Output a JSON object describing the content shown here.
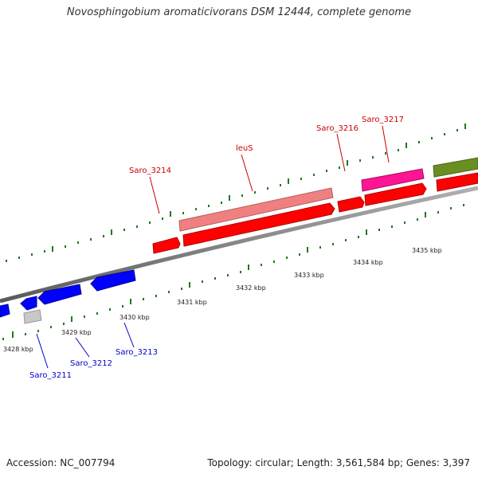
{
  "title": "Novosphingobium aromaticivorans DSM 12444, complete genome",
  "footer": {
    "accession": "Accession: NC_007794",
    "summary": "Topology: circular; Length: 3,561,584 bp; Genes: 3,397"
  },
  "colors": {
    "forward_gene": "#ff0000",
    "reverse_gene": "#0000ff",
    "leuS_gene": "#f08080",
    "saro3217_gene": "#ff1493",
    "olive_gene": "#6b8e23",
    "grey_gene": "#c8c8c8",
    "backbone": "#7a7a7a",
    "tick": "#1e7a1e",
    "forward_label": "#cc0000",
    "reverse_label": "#0000cc"
  },
  "scale_labels": [
    "3428 kbp",
    "3429 kbp",
    "3430 kbp",
    "3431 kbp",
    "3432 kbp",
    "3433 kbp",
    "3434 kbp",
    "3435 kbp"
  ],
  "forward_labels": [
    "Saro_3214",
    "leuS",
    "Saro_3216",
    "Saro_3217"
  ],
  "reverse_labels": [
    "Saro_3211",
    "Saro_3212",
    "Saro_3213"
  ]
}
